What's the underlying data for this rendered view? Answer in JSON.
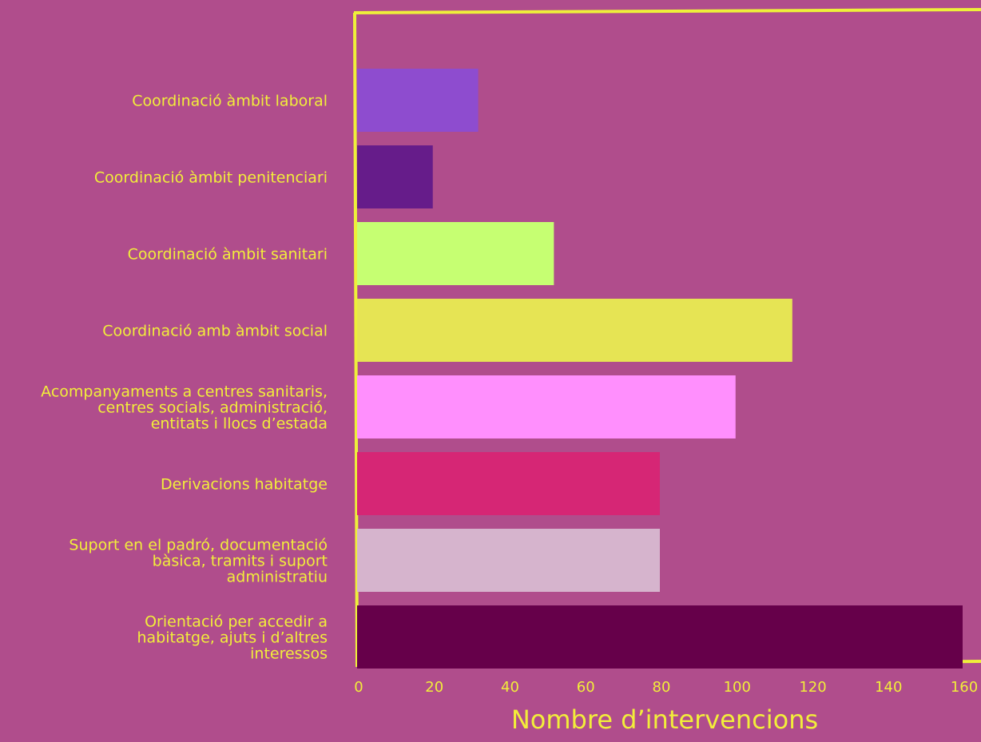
{
  "colors": {
    "background": "#b04d8c",
    "axis": "#eef03a",
    "text": "#f2ee3a"
  },
  "chart_data": {
    "type": "bar",
    "orientation": "horizontal",
    "title": "",
    "xlabel": "Nombre d’intervencions",
    "ylabel": "",
    "xlim": [
      0,
      160
    ],
    "xticks": [
      0,
      20,
      40,
      60,
      80,
      100,
      120,
      140,
      160
    ],
    "grid": false,
    "legend": "none",
    "categories": [
      [
        "Coordinació àmbit laboral"
      ],
      [
        "Coordinació àmbit penitenciari"
      ],
      [
        "Coordinació àmbit sanitari"
      ],
      [
        "Coordinació amb àmbit social"
      ],
      [
        "Acompanyaments a centres sanitaris,",
        "centres socials, administració,",
        "entitats i llocs d’estada"
      ],
      [
        "Derivacions habitatge"
      ],
      [
        "Suport en el padró, documentació",
        "bàsica, tramits i suport",
        "administratiu"
      ],
      [
        "Orientació per accedir a",
        "habitatge, ajuts i d’altres",
        "interessos"
      ]
    ],
    "values": [
      32,
      20,
      52,
      115,
      100,
      80,
      80,
      160
    ],
    "bar_colors": [
      "#8e4ccf",
      "#661c8a",
      "#c6ff72",
      "#e6e454",
      "#ff8ffd",
      "#d62675",
      "#d6b4cd",
      "#66004a"
    ]
  }
}
